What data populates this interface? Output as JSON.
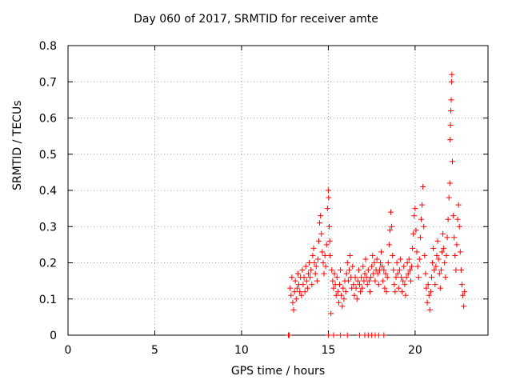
{
  "chart_data": {
    "type": "scatter",
    "title": "Day 060 of 2017, SRMTID for receiver amte",
    "xlabel": "GPS time / hours",
    "ylabel": "SRMTID / TECUs",
    "xlim": [
      0,
      24.2
    ],
    "ylim": [
      0,
      0.8
    ],
    "xticks": [
      0,
      5,
      10,
      15,
      20
    ],
    "xtick_labels": [
      "0",
      "5",
      "10",
      "15",
      "20"
    ],
    "yticks": [
      0,
      0.1,
      0.2,
      0.3,
      0.4,
      0.5,
      0.6,
      0.7,
      0.8
    ],
    "ytick_labels": [
      "0",
      "0.1",
      "0.2",
      "0.3",
      "0.4",
      "0.5",
      "0.6",
      "0.7",
      "0.8"
    ],
    "grid": true,
    "marker": "+",
    "color": "#ff0000",
    "series": [
      {
        "name": "SRMTID",
        "points": [
          [
            12.7,
            0
          ],
          [
            12.75,
            0
          ],
          [
            12.8,
            0.13
          ],
          [
            12.85,
            0.11
          ],
          [
            12.9,
            0.16
          ],
          [
            12.95,
            0.09
          ],
          [
            13.0,
            0.07
          ],
          [
            13.05,
            0.12
          ],
          [
            13.1,
            0.15
          ],
          [
            13.15,
            0.1
          ],
          [
            13.2,
            0.13
          ],
          [
            13.25,
            0.17
          ],
          [
            13.3,
            0.14
          ],
          [
            13.35,
            0.12
          ],
          [
            13.4,
            0.16
          ],
          [
            13.45,
            0.11
          ],
          [
            13.5,
            0.18
          ],
          [
            13.55,
            0.14
          ],
          [
            13.6,
            0.16
          ],
          [
            13.65,
            0.12
          ],
          [
            13.7,
            0.19
          ],
          [
            13.75,
            0.15
          ],
          [
            13.8,
            0.13
          ],
          [
            13.85,
            0.17
          ],
          [
            13.9,
            0.2
          ],
          [
            13.95,
            0.16
          ],
          [
            14.0,
            0.18
          ],
          [
            14.05,
            0.14
          ],
          [
            14.1,
            0.22
          ],
          [
            14.15,
            0.24
          ],
          [
            14.2,
            0.2
          ],
          [
            14.25,
            0.17
          ],
          [
            14.3,
            0.19
          ],
          [
            14.35,
            0.15
          ],
          [
            14.4,
            0.21
          ],
          [
            14.45,
            0.26
          ],
          [
            14.5,
            0.31
          ],
          [
            14.55,
            0.33
          ],
          [
            14.6,
            0.28
          ],
          [
            14.65,
            0.23
          ],
          [
            14.7,
            0.2
          ],
          [
            14.75,
            0.17
          ],
          [
            14.8,
            0.22
          ],
          [
            14.85,
            0.19
          ],
          [
            14.9,
            0.25
          ],
          [
            14.95,
            0.35
          ],
          [
            15.0,
            0.4
          ],
          [
            15.02,
            0.38
          ],
          [
            15.05,
            0.3
          ],
          [
            15.08,
            0.26
          ],
          [
            15.1,
            0.22
          ],
          [
            15.15,
            0.06
          ],
          [
            15.2,
            0.18
          ],
          [
            15.25,
            0.15
          ],
          [
            15.3,
            0.13
          ],
          [
            15.35,
            0.17
          ],
          [
            15.4,
            0.14
          ],
          [
            15.45,
            0.11
          ],
          [
            15.5,
            0.16
          ],
          [
            15.55,
            0.12
          ],
          [
            15.6,
            0.09
          ],
          [
            15.65,
            0.14
          ],
          [
            15.7,
            0.18
          ],
          [
            15.75,
            0.11
          ],
          [
            15.8,
            0.08
          ],
          [
            15.85,
            0.13
          ],
          [
            15.9,
            0.1
          ],
          [
            15.95,
            0.15
          ],
          [
            16.0,
            0.12
          ],
          [
            16.05,
            0.17
          ],
          [
            16.1,
            0.2
          ],
          [
            16.15,
            0.15
          ],
          [
            16.2,
            0.18
          ],
          [
            16.25,
            0.22
          ],
          [
            16.3,
            0.16
          ],
          [
            16.35,
            0.13
          ],
          [
            16.4,
            0.19
          ],
          [
            16.45,
            0.14
          ],
          [
            16.5,
            0.11
          ],
          [
            16.55,
            0.16
          ],
          [
            16.6,
            0.13
          ],
          [
            16.65,
            0.1
          ],
          [
            16.7,
            0.15
          ],
          [
            16.75,
            0.18
          ],
          [
            16.8,
            0.14
          ],
          [
            16.85,
            0.12
          ],
          [
            16.9,
            0.16
          ],
          [
            16.95,
            0.13
          ],
          [
            17.0,
            0.19
          ],
          [
            17.05,
            0.15
          ],
          [
            17.1,
            0.17
          ],
          [
            17.15,
            0.21
          ],
          [
            17.2,
            0.16
          ],
          [
            17.25,
            0.14
          ],
          [
            17.3,
            0.18
          ],
          [
            17.35,
            0.15
          ],
          [
            17.4,
            0.12
          ],
          [
            17.45,
            0.16
          ],
          [
            17.5,
            0.19
          ],
          [
            17.55,
            0.22
          ],
          [
            17.6,
            0.17
          ],
          [
            17.65,
            0.2
          ],
          [
            17.7,
            0.15
          ],
          [
            17.75,
            0.18
          ],
          [
            17.8,
            0.21
          ],
          [
            17.85,
            0.17
          ],
          [
            17.9,
            0.14
          ],
          [
            17.95,
            0.18
          ],
          [
            18.0,
            0.2
          ],
          [
            18.05,
            0.23
          ],
          [
            18.1,
            0.19
          ],
          [
            18.15,
            0.15
          ],
          [
            18.2,
            0.18
          ],
          [
            18.25,
            0.13
          ],
          [
            18.3,
            0.17
          ],
          [
            18.35,
            0.12
          ],
          [
            18.4,
            0.16
          ],
          [
            18.45,
            0.2
          ],
          [
            18.5,
            0.25
          ],
          [
            18.55,
            0.29
          ],
          [
            18.6,
            0.34
          ],
          [
            18.65,
            0.3
          ],
          [
            18.7,
            0.22
          ],
          [
            18.75,
            0.18
          ],
          [
            18.8,
            0.14
          ],
          [
            18.85,
            0.12
          ],
          [
            18.9,
            0.16
          ],
          [
            18.95,
            0.2
          ],
          [
            19.0,
            0.17
          ],
          [
            19.05,
            0.13
          ],
          [
            19.1,
            0.18
          ],
          [
            19.15,
            0.21
          ],
          [
            19.2,
            0.16
          ],
          [
            19.25,
            0.12
          ],
          [
            19.3,
            0.15
          ],
          [
            19.35,
            0.19
          ],
          [
            19.4,
            0.14
          ],
          [
            19.45,
            0.11
          ],
          [
            19.5,
            0.16
          ],
          [
            19.55,
            0.2
          ],
          [
            19.6,
            0.17
          ],
          [
            19.65,
            0.21
          ],
          [
            19.7,
            0.18
          ],
          [
            19.75,
            0.15
          ],
          [
            19.8,
            0.19
          ],
          [
            19.85,
            0.24
          ],
          [
            19.9,
            0.28
          ],
          [
            19.95,
            0.33
          ],
          [
            20.0,
            0.35
          ],
          [
            20.05,
            0.29
          ],
          [
            20.1,
            0.23
          ],
          [
            20.15,
            0.19
          ],
          [
            20.2,
            0.16
          ],
          [
            20.25,
            0.21
          ],
          [
            20.3,
            0.27
          ],
          [
            20.35,
            0.32
          ],
          [
            20.4,
            0.36
          ],
          [
            20.45,
            0.41
          ],
          [
            20.5,
            0.3
          ],
          [
            20.55,
            0.22
          ],
          [
            20.6,
            0.17
          ],
          [
            20.65,
            0.13
          ],
          [
            20.7,
            0.09
          ],
          [
            20.75,
            0.14
          ],
          [
            20.8,
            0.11
          ],
          [
            20.85,
            0.07
          ],
          [
            20.9,
            0.12
          ],
          [
            20.95,
            0.16
          ],
          [
            21.0,
            0.2
          ],
          [
            21.05,
            0.24
          ],
          [
            21.1,
            0.18
          ],
          [
            21.15,
            0.14
          ],
          [
            21.2,
            0.19
          ],
          [
            21.25,
            0.22
          ],
          [
            21.3,
            0.26
          ],
          [
            21.35,
            0.21
          ],
          [
            21.4,
            0.17
          ],
          [
            21.45,
            0.13
          ],
          [
            21.5,
            0.18
          ],
          [
            21.55,
            0.23
          ],
          [
            21.6,
            0.28
          ],
          [
            21.65,
            0.24
          ],
          [
            21.7,
            0.2
          ],
          [
            21.75,
            0.16
          ],
          [
            21.8,
            0.22
          ],
          [
            21.85,
            0.27
          ],
          [
            21.9,
            0.32
          ],
          [
            21.95,
            0.38
          ],
          [
            22.0,
            0.42
          ],
          [
            22.02,
            0.54
          ],
          [
            22.04,
            0.58
          ],
          [
            22.06,
            0.62
          ],
          [
            22.08,
            0.65
          ],
          [
            22.1,
            0.7
          ],
          [
            22.12,
            0.72
          ],
          [
            22.15,
            0.48
          ],
          [
            22.2,
            0.33
          ],
          [
            22.25,
            0.27
          ],
          [
            22.3,
            0.22
          ],
          [
            22.35,
            0.18
          ],
          [
            22.4,
            0.25
          ],
          [
            22.45,
            0.32
          ],
          [
            22.5,
            0.36
          ],
          [
            22.55,
            0.3
          ],
          [
            22.6,
            0.23
          ],
          [
            22.65,
            0.18
          ],
          [
            22.7,
            0.14
          ],
          [
            22.75,
            0.11
          ],
          [
            22.8,
            0.08
          ],
          [
            22.85,
            0.12
          ],
          [
            15.0,
            0
          ],
          [
            15.3,
            0
          ],
          [
            15.7,
            0
          ],
          [
            16.1,
            0
          ],
          [
            16.8,
            0
          ],
          [
            17.1,
            0
          ],
          [
            17.3,
            0
          ],
          [
            17.5,
            0
          ],
          [
            17.7,
            0
          ],
          [
            17.9,
            0
          ],
          [
            18.2,
            0
          ]
        ]
      }
    ]
  }
}
